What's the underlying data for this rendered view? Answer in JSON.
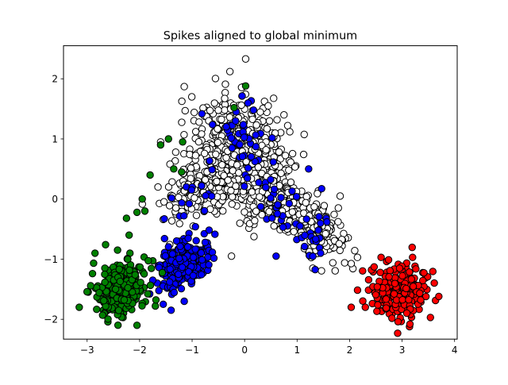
{
  "chart_data": {
    "type": "scatter",
    "title": "Spikes aligned to global minimum",
    "xlabel": "",
    "ylabel": "",
    "xlim": [
      -3.45,
      4.05
    ],
    "ylim": [
      -2.33,
      2.55
    ],
    "xticks": [
      -3,
      -2,
      -1,
      0,
      1,
      2,
      3,
      4
    ],
    "yticks": [
      -2,
      -1,
      0,
      1,
      2
    ],
    "grid": false,
    "legend": false,
    "marker_edge_color": "#000000",
    "series": [
      {
        "color": "#ffffff",
        "clusters": [
          {
            "n": 620,
            "center": [
              -0.1,
              0.7
            ],
            "spread": [
              0.42,
              0.45
            ],
            "rho": -0.15
          },
          {
            "n": 420,
            "center": [
              0.75,
              -0.05
            ],
            "spread": [
              0.42,
              0.35
            ],
            "rho": -0.7
          },
          {
            "n": 180,
            "center": [
              -0.85,
              0.25
            ],
            "spread": [
              0.35,
              0.4
            ],
            "rho": 0.55
          },
          {
            "n": 110,
            "center": [
              1.45,
              -0.55
            ],
            "spread": [
              0.22,
              0.22
            ],
            "rho": -0.5
          }
        ],
        "points": [
          [
            0.02,
            2.33
          ],
          [
            -0.28,
            2.12
          ],
          [
            0.45,
            1.55
          ],
          [
            -1.6,
            0.95
          ],
          [
            2.15,
            -0.97
          ],
          [
            1.82,
            0.05
          ],
          [
            -1.65,
            0.2
          ],
          [
            -0.25,
            -0.95
          ],
          [
            0.75,
            1.4
          ],
          [
            0.55,
            0.3
          ],
          [
            -1.15,
            1.87
          ],
          [
            1.3,
            -1.15
          ]
        ]
      },
      {
        "color": "#0000ff",
        "clusters": [
          {
            "n": 300,
            "center": [
              -1.15,
              -1.1
            ],
            "spread": [
              0.24,
              0.2
            ],
            "rho": 0.45
          },
          {
            "n": 35,
            "center": [
              -0.15,
              0.9
            ],
            "spread": [
              0.25,
              0.4
            ],
            "rho": 0.0
          },
          {
            "n": 35,
            "center": [
              0.6,
              0.1
            ],
            "spread": [
              0.35,
              0.35
            ],
            "rho": -0.4
          },
          {
            "n": 20,
            "center": [
              1.35,
              -0.6
            ],
            "spread": [
              0.2,
              0.2
            ],
            "rho": 0.0
          },
          {
            "n": 15,
            "center": [
              -0.95,
              0.0
            ],
            "spread": [
              0.25,
              0.3
            ],
            "rho": 0.0
          }
        ],
        "points": [
          [
            -1.55,
            -1.75
          ],
          [
            -1.4,
            -1.85
          ],
          [
            -1.15,
            -1.7
          ],
          [
            1.22,
            0.5
          ],
          [
            -1.53,
            -0.33
          ],
          [
            -1.75,
            -1.35
          ],
          [
            0.17,
            1.48
          ],
          [
            0.6,
            -0.95
          ]
        ]
      },
      {
        "color": "#008000",
        "clusters": [
          {
            "n": 250,
            "center": [
              -2.35,
              -1.5
            ],
            "spread": [
              0.25,
              0.25
            ],
            "rho": 0.3
          }
        ],
        "points": [
          [
            -3.15,
            -1.8
          ],
          [
            -2.85,
            -0.9
          ],
          [
            -2.25,
            -0.32
          ],
          [
            -2.05,
            -0.22
          ],
          [
            -1.95,
            0.0
          ],
          [
            -1.8,
            0.4
          ],
          [
            -1.6,
            0.9
          ],
          [
            -1.45,
            1.0
          ],
          [
            -1.18,
            0.95
          ],
          [
            -1.2,
            0.45
          ],
          [
            -2.05,
            -2.1
          ],
          [
            -2.2,
            -0.6
          ],
          [
            -2.42,
            -0.85
          ],
          [
            -1.9,
            -0.2
          ],
          [
            -1.35,
            0.5
          ],
          [
            0.02,
            1.88
          ],
          [
            -0.2,
            1.52
          ]
        ]
      },
      {
        "color": "#ff0000",
        "clusters": [
          {
            "n": 230,
            "center": [
              3.0,
              -1.55
            ],
            "spread": [
              0.28,
              0.22
            ],
            "rho": 0.05
          }
        ],
        "points": [
          [
            2.6,
            -0.97
          ],
          [
            3.2,
            -0.97
          ],
          [
            3.7,
            -1.62
          ],
          [
            2.3,
            -1.8
          ],
          [
            3.15,
            -2.08
          ]
        ]
      }
    ]
  }
}
